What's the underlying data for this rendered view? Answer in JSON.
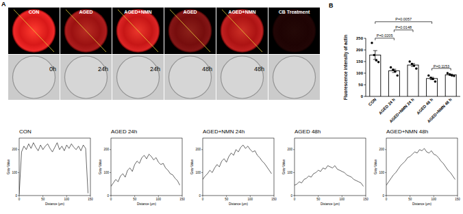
{
  "panel_a": {
    "label": "A",
    "labels": [
      "CON",
      "AGED",
      "AGED+NMN",
      "AGED",
      "AGED+NMN",
      "CB Treatment"
    ],
    "times": [
      "0h",
      "24h",
      "24h",
      "48h",
      "48h"
    ]
  },
  "chart_data": [
    {
      "type": "bar",
      "panel_label": "B",
      "y_label": "Fluorescence intensity of actin",
      "categories": [
        "CON",
        "AGED 24 h",
        "AGED+NMN 24 h",
        "AGED 48 h",
        "AGED+NMN 48 h"
      ],
      "values": [
        178,
        110,
        135,
        77,
        93
      ],
      "errors": [
        19,
        7,
        6,
        5,
        3
      ],
      "points": [
        [
          230,
          178,
          155,
          148
        ],
        [
          125,
          115,
          108,
          90
        ],
        [
          150,
          140,
          132,
          120
        ],
        [
          90,
          80,
          75,
          64
        ],
        [
          100,
          95,
          90,
          88
        ]
      ],
      "color": "#ffffff",
      "ylim": [
        0,
        250
      ],
      "yticks": [
        0,
        50,
        100,
        150,
        200,
        250
      ],
      "annotations": [
        {
          "from": 0,
          "to": 1,
          "text": "P=0.0205"
        },
        {
          "from": 1,
          "to": 2,
          "text": "P=0.0148"
        },
        {
          "from": 3,
          "to": 4,
          "text": "P=0.1153"
        },
        {
          "from": 0,
          "to": 3,
          "text": "P=0.0057"
        }
      ]
    },
    {
      "type": "line",
      "title": "CON",
      "x_label": "Distance (μm)",
      "y_label": "Gray Value",
      "color": "#000000",
      "x": [
        0,
        5,
        10,
        15,
        20,
        25,
        30,
        35,
        40,
        45,
        50,
        55,
        60,
        65,
        70,
        75,
        80,
        85,
        90,
        95,
        100,
        105,
        110,
        115,
        120,
        125,
        130,
        135,
        140,
        145
      ],
      "values": [
        5,
        190,
        215,
        200,
        225,
        205,
        230,
        210,
        195,
        220,
        200,
        215,
        225,
        205,
        190,
        210,
        230,
        200,
        215,
        195,
        220,
        205,
        225,
        210,
        200,
        215,
        195,
        220,
        205,
        10
      ],
      "xlim": [
        0,
        150
      ],
      "xticks": [
        0,
        50,
        100,
        150
      ],
      "ylim": [
        0,
        250
      ],
      "yticks": [
        0,
        100,
        200
      ]
    },
    {
      "type": "line",
      "title": "AGED 24h",
      "x_label": "Distance (μm)",
      "y_label": "Gray Value",
      "color": "#000000",
      "x": [
        0,
        5,
        10,
        15,
        20,
        25,
        30,
        35,
        40,
        45,
        50,
        55,
        60,
        65,
        70,
        75,
        80,
        85,
        90,
        95,
        100,
        105,
        110,
        115,
        120,
        125,
        130,
        135,
        140,
        145
      ],
      "values": [
        40,
        55,
        70,
        60,
        85,
        95,
        80,
        110,
        120,
        105,
        135,
        150,
        140,
        165,
        175,
        160,
        180,
        170,
        155,
        165,
        145,
        135,
        140,
        120,
        110,
        95,
        90,
        75,
        65,
        45
      ],
      "xlim": [
        0,
        150
      ],
      "xticks": [
        0,
        50,
        100,
        150
      ],
      "ylim": [
        0,
        250
      ],
      "yticks": [
        0,
        100,
        200
      ]
    },
    {
      "type": "line",
      "title": "AGED+NMN 24h",
      "x_label": "Distance (μm)",
      "y_label": "Gray Value",
      "color": "#000000",
      "x": [
        0,
        5,
        10,
        15,
        20,
        25,
        30,
        35,
        40,
        45,
        50,
        55,
        60,
        65,
        70,
        75,
        80,
        85,
        90,
        95,
        100,
        105,
        110,
        115,
        120,
        125,
        130,
        135,
        140,
        145
      ],
      "values": [
        70,
        85,
        95,
        110,
        100,
        120,
        135,
        125,
        150,
        160,
        145,
        170,
        185,
        175,
        200,
        190,
        210,
        220,
        205,
        215,
        200,
        190,
        195,
        175,
        165,
        150,
        140,
        125,
        110,
        95
      ],
      "xlim": [
        0,
        150
      ],
      "xticks": [
        0,
        50,
        100,
        150
      ],
      "ylim": [
        0,
        250
      ],
      "yticks": [
        0,
        100,
        200
      ]
    },
    {
      "type": "line",
      "title": "AGED 48h",
      "x_label": "Distance (μm)",
      "y_label": "Gray Value",
      "color": "#000000",
      "x": [
        0,
        5,
        10,
        15,
        20,
        25,
        30,
        35,
        40,
        45,
        50,
        55,
        60,
        65,
        70,
        75,
        80,
        85,
        90,
        95,
        100,
        105,
        110,
        115,
        120,
        125,
        130,
        135,
        140,
        145
      ],
      "values": [
        45,
        50,
        60,
        55,
        70,
        75,
        85,
        80,
        95,
        100,
        110,
        105,
        120,
        115,
        130,
        125,
        120,
        130,
        115,
        110,
        105,
        100,
        90,
        85,
        80,
        70,
        65,
        60,
        55,
        40
      ],
      "xlim": [
        0,
        150
      ],
      "xticks": [
        0,
        50,
        100,
        150
      ],
      "ylim": [
        0,
        250
      ],
      "yticks": [
        0,
        100,
        200
      ]
    },
    {
      "type": "line",
      "title": "AGED+NMN 48h",
      "x_label": "Distance (μm)",
      "y_label": "Gray Value",
      "color": "#000000",
      "x": [
        0,
        5,
        10,
        15,
        20,
        25,
        30,
        35,
        40,
        45,
        50,
        55,
        60,
        65,
        70,
        75,
        80,
        85,
        90,
        95,
        100,
        105,
        110,
        115,
        120,
        125,
        130,
        135,
        140,
        145
      ],
      "values": [
        45,
        60,
        75,
        90,
        100,
        115,
        130,
        140,
        150,
        165,
        170,
        180,
        190,
        185,
        200,
        195,
        205,
        190,
        185,
        195,
        180,
        175,
        165,
        150,
        140,
        125,
        110,
        100,
        85,
        70
      ],
      "xlim": [
        0,
        150
      ],
      "xticks": [
        0,
        50,
        100,
        150
      ],
      "ylim": [
        0,
        250
      ],
      "yticks": [
        0,
        100,
        200
      ]
    }
  ]
}
